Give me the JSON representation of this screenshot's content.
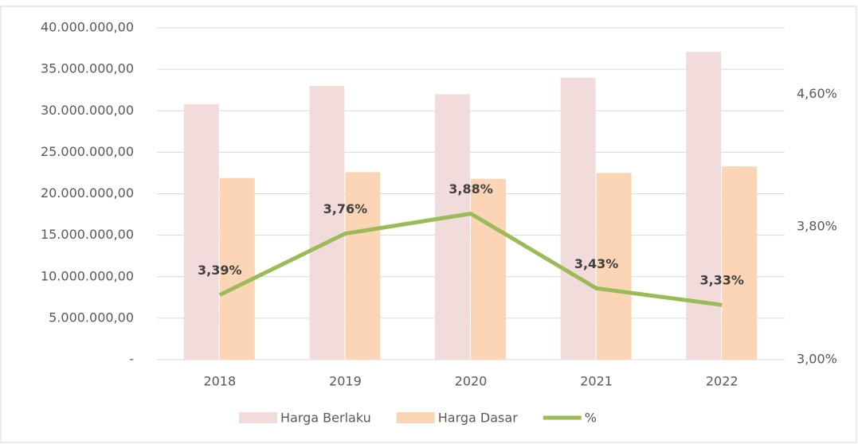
{
  "chart_data": {
    "type": "bar_line",
    "categories": [
      "2018",
      "2019",
      "2020",
      "2021",
      "2022"
    ],
    "series": [
      {
        "name": "Harga Berlaku",
        "color": "#f2dcdb",
        "type": "bar",
        "values": [
          30800000,
          33000000,
          32000000,
          34000000,
          37100000
        ]
      },
      {
        "name": "Harga Dasar",
        "color": "#fbd5b5",
        "type": "bar",
        "values": [
          21900000,
          22600000,
          21800000,
          22500000,
          23300000
        ]
      },
      {
        "name": "%",
        "color": "#9bbb59",
        "type": "line",
        "axis": "y2",
        "values": [
          3.39,
          3.76,
          3.88,
          3.43,
          3.33
        ],
        "value_labels": [
          "3,39%",
          "3,76%",
          "3,88%",
          "3,43%",
          "3,33%"
        ]
      }
    ],
    "ylim": [
      0,
      40000000
    ],
    "yticks": [
      {
        "value": 0,
        "label": "-"
      },
      {
        "value": 5000000,
        "label": "5.000.000,00"
      },
      {
        "value": 10000000,
        "label": "10.000.000,00"
      },
      {
        "value": 15000000,
        "label": "15.000.000,00"
      },
      {
        "value": 20000000,
        "label": "20.000.000,00"
      },
      {
        "value": 25000000,
        "label": "25.000.000,00"
      },
      {
        "value": 30000000,
        "label": "30.000.000,00"
      },
      {
        "value": 35000000,
        "label": "35.000.000,00"
      },
      {
        "value": 40000000,
        "label": "40.000.000,00"
      }
    ],
    "y2lim": [
      3,
      5
    ],
    "y2ticks": [
      {
        "value": 3,
        "label": "3,00%"
      },
      {
        "value": 3.8,
        "label": "3,80%"
      },
      {
        "value": 4.6,
        "label": "4,60%"
      }
    ],
    "grid": true,
    "legend": "bottom"
  }
}
